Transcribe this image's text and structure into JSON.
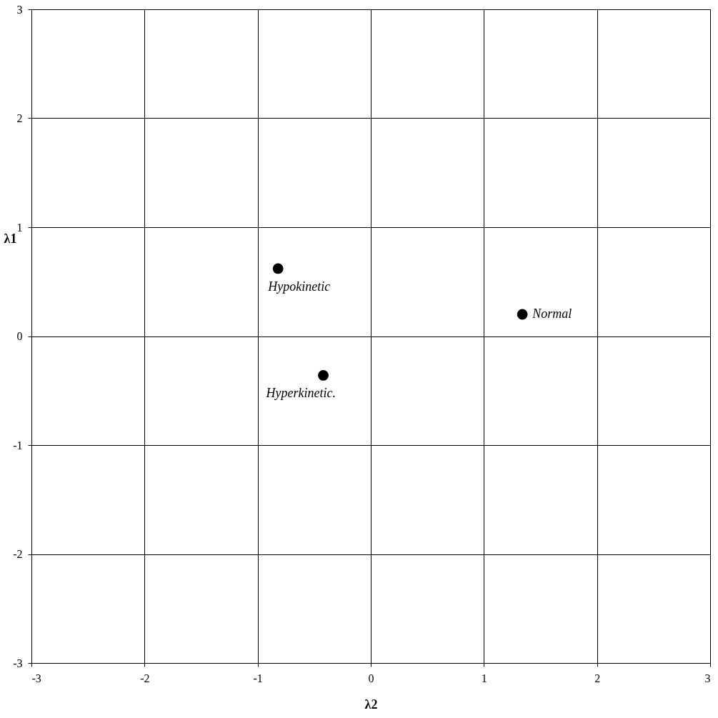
{
  "chart_data": {
    "type": "scatter",
    "xlabel": "λ2",
    "ylabel": "λ1",
    "xlim": [
      -3,
      3
    ],
    "ylim": [
      -3,
      3
    ],
    "xticks": [
      -3,
      -2,
      -1,
      0,
      1,
      2,
      3
    ],
    "yticks": [
      -3,
      -2,
      -1,
      0,
      1,
      2,
      3
    ],
    "grid": true,
    "legend": false,
    "marker": "circle",
    "series": [
      {
        "name": "Hypokinetic",
        "color": "#000000",
        "x": [
          -0.82
        ],
        "values": [
          0.62
        ]
      },
      {
        "name": "Normal",
        "color": "#000000",
        "x": [
          1.34
        ],
        "values": [
          0.2
        ]
      },
      {
        "name": "Hyperkinetic.",
        "color": "#000000",
        "x": [
          -0.42
        ],
        "values": [
          -0.36
        ]
      }
    ]
  }
}
